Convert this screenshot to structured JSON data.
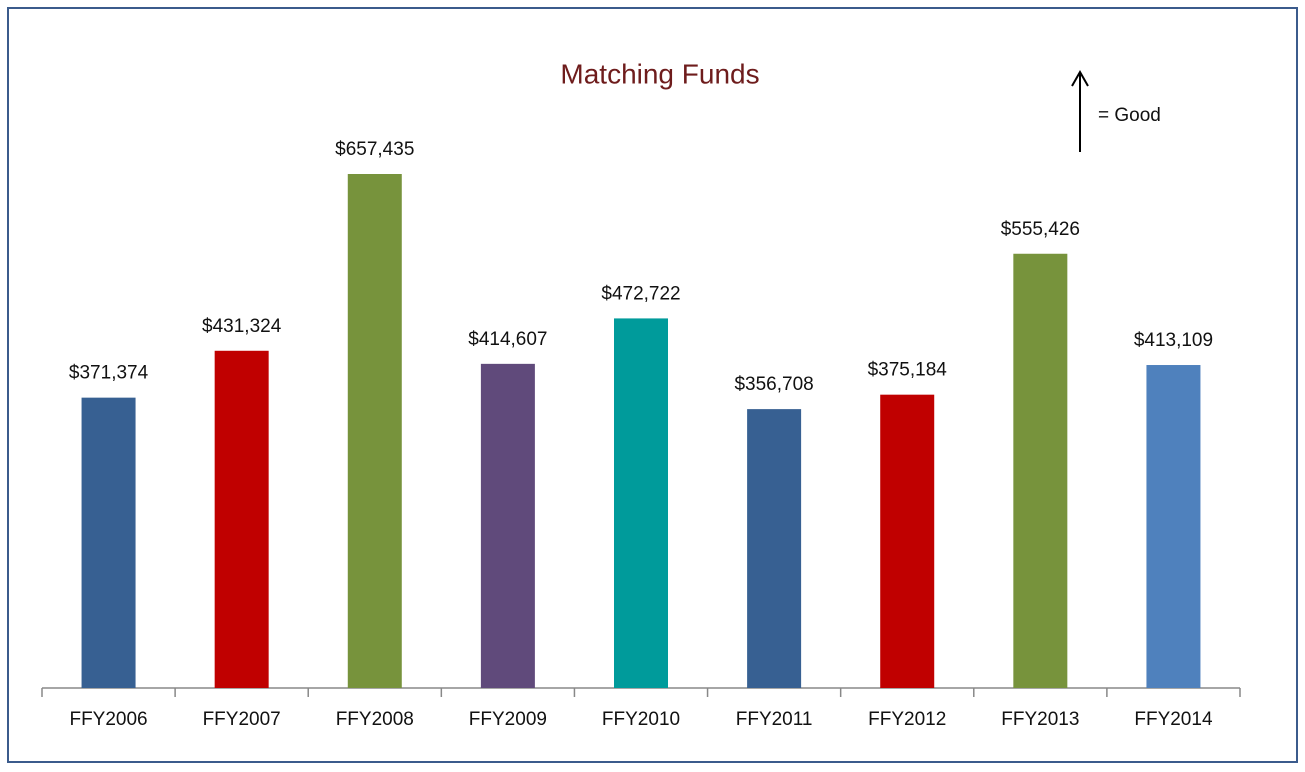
{
  "chart_data": {
    "type": "bar",
    "title": "Matching Funds",
    "annotation": "= Good",
    "categories": [
      "FFY2006",
      "FFY2007",
      "FFY2008",
      "FFY2009",
      "FFY2010",
      "FFY2011",
      "FFY2012",
      "FFY2013",
      "FFY2014"
    ],
    "values": [
      371374,
      431324,
      657435,
      414607,
      472722,
      356708,
      375184,
      555426,
      413109
    ],
    "value_labels": [
      "$371,374",
      "$431,324",
      "$657,435",
      "$414,607",
      "$472,722",
      "$356,708",
      "$375,184",
      "$555,426",
      "$413,109"
    ],
    "colors": [
      "#376092",
      "#c00000",
      "#77933c",
      "#604a7b",
      "#009b9b",
      "#376092",
      "#c00000",
      "#77933c",
      "#4f81bd"
    ]
  }
}
